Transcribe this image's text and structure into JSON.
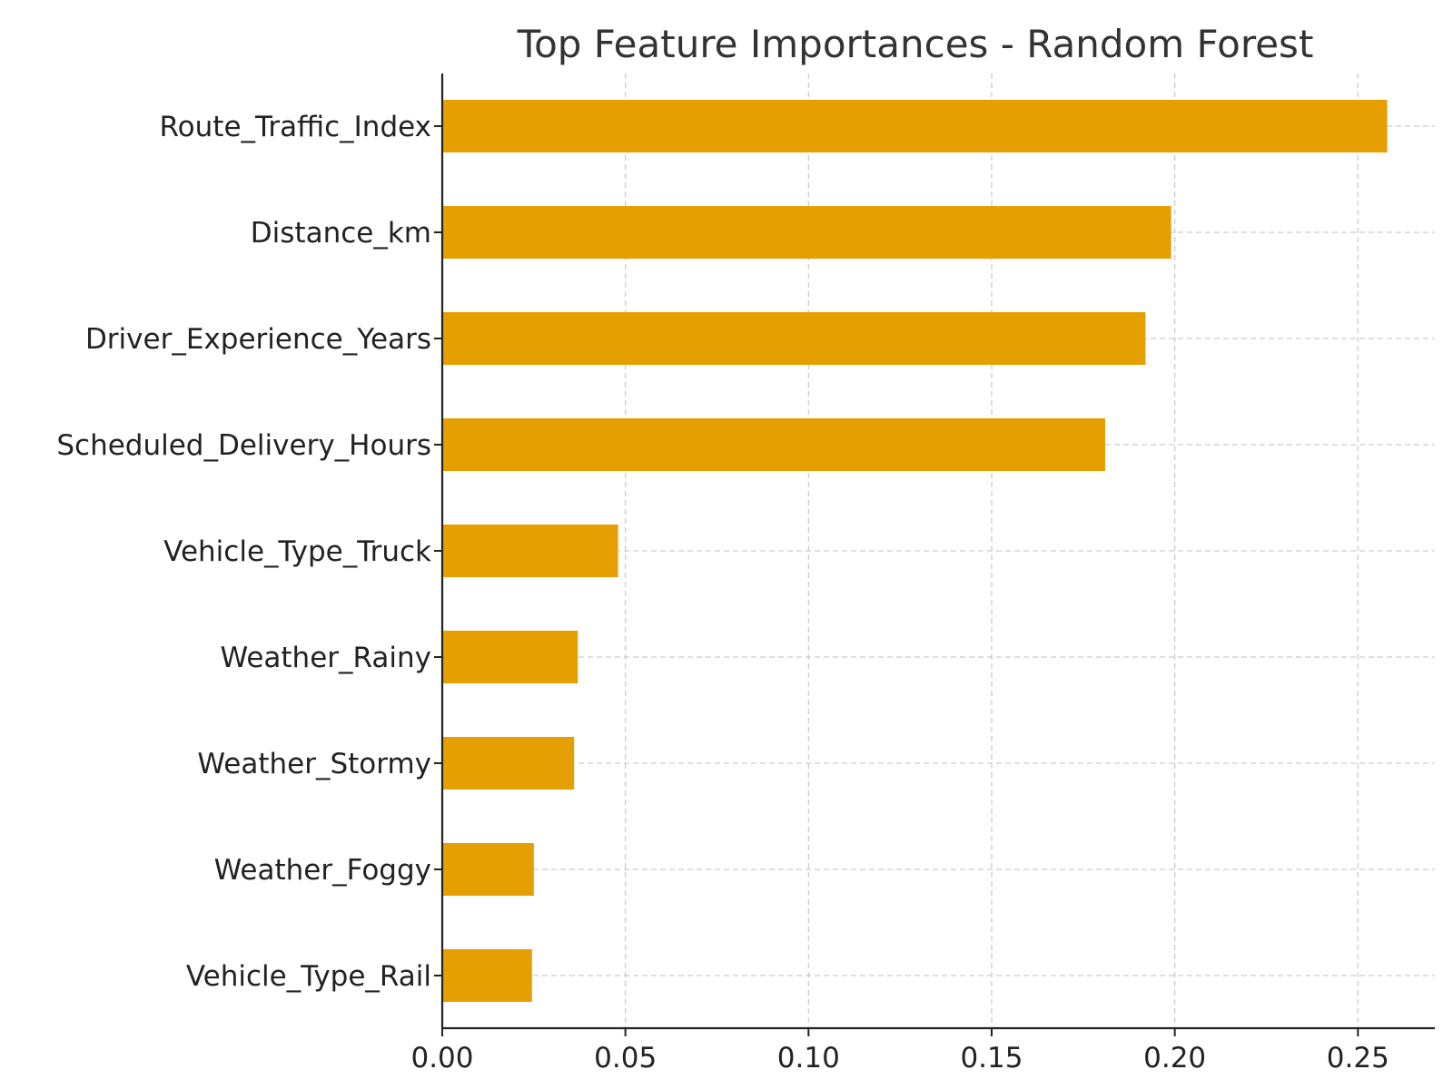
{
  "chart_data": {
    "type": "bar",
    "orientation": "horizontal",
    "title": "Top Feature Importances - Random Forest",
    "xlabel": "",
    "ylabel": "",
    "categories": [
      "Route_Traffic_Index",
      "Distance_km",
      "Driver_Experience_Years",
      "Scheduled_Delivery_Hours",
      "Vehicle_Type_Truck",
      "Weather_Rainy",
      "Weather_Stormy",
      "Weather_Foggy",
      "Vehicle_Type_Rail"
    ],
    "values": [
      0.258,
      0.199,
      0.192,
      0.181,
      0.048,
      0.037,
      0.036,
      0.025,
      0.0245
    ],
    "xlim": [
      0,
      0.271
    ],
    "xticks": [
      0,
      0.05,
      0.1,
      0.15,
      0.2,
      0.25
    ],
    "xtick_labels": [
      "0.00",
      "0.05",
      "0.10",
      "0.15",
      "0.20",
      "0.25"
    ],
    "grid": true,
    "legend": "none",
    "bar_color": "#E69F00"
  }
}
